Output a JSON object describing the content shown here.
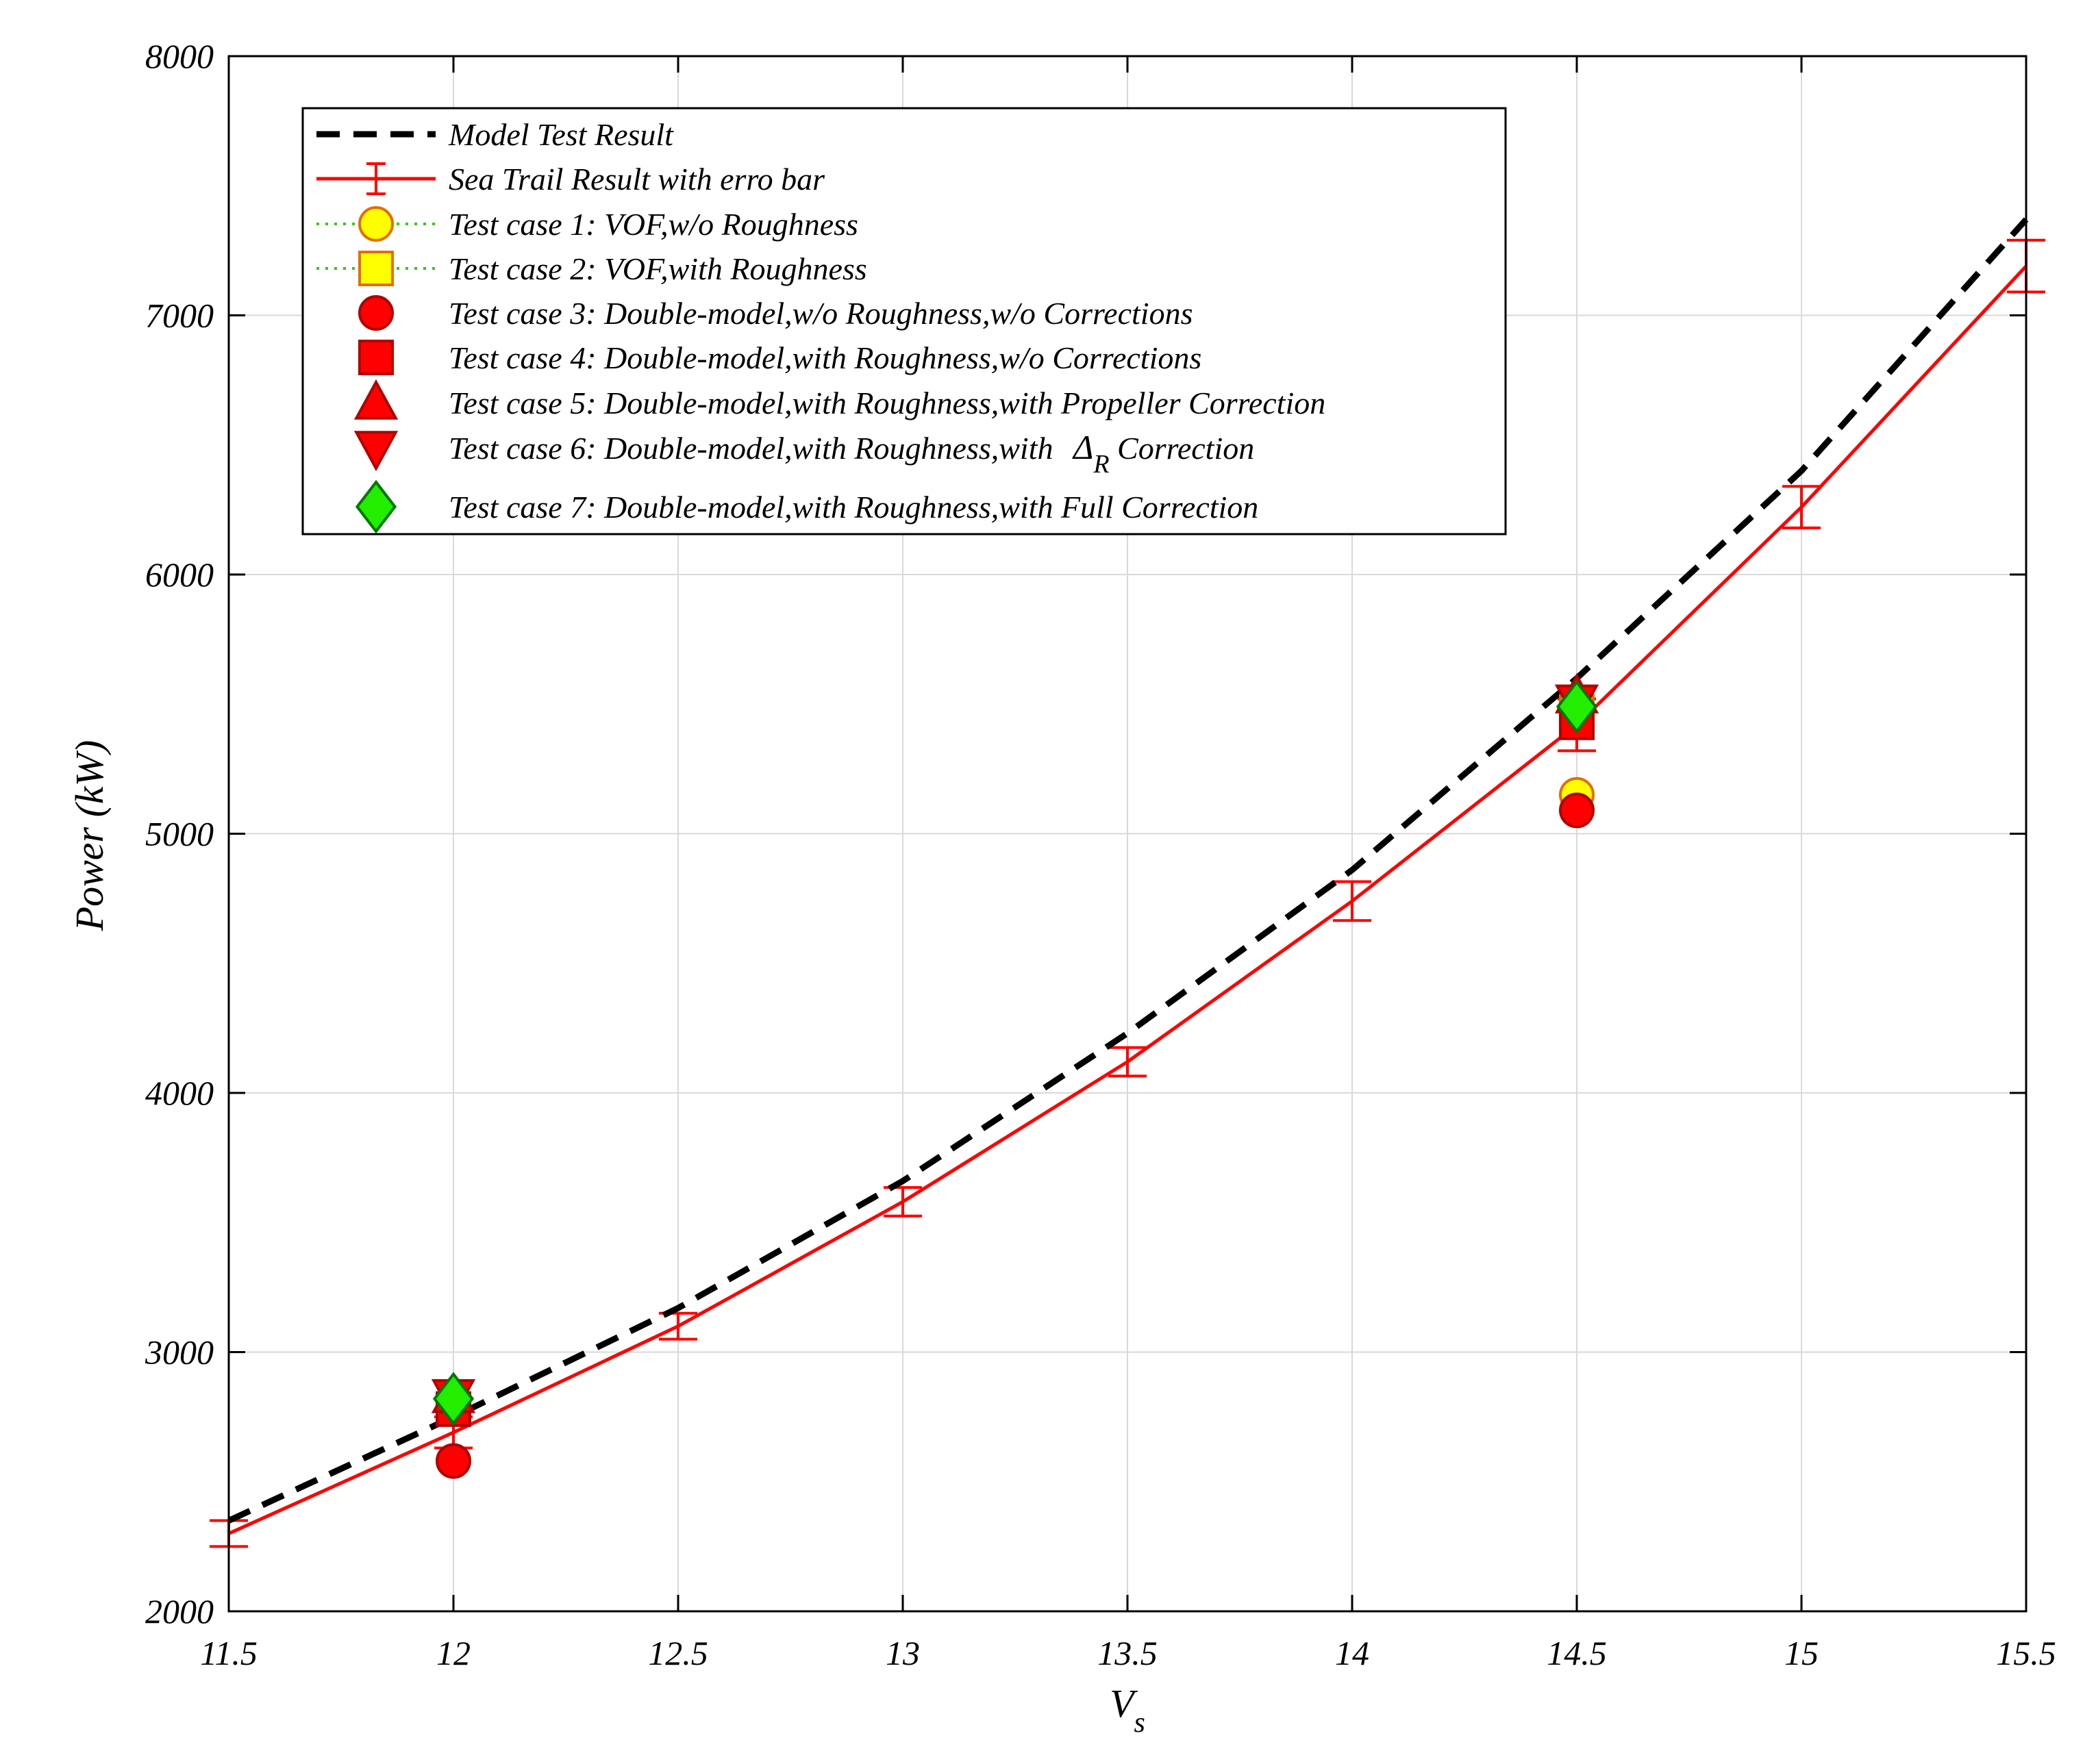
{
  "chart_data": {
    "type": "line",
    "title": "",
    "xlabel": "V",
    "xlabel_subscript": "s",
    "ylabel": "Power (kW)",
    "xlim": [
      11.5,
      15.5
    ],
    "ylim": [
      2000,
      8000
    ],
    "grid": true,
    "x_ticks": [
      11.5,
      12,
      12.5,
      13,
      13.5,
      14,
      14.5,
      15,
      15.5
    ],
    "x_tick_labels": [
      "11.5",
      "12",
      "12.5",
      "13",
      "13.5",
      "14",
      "14.5",
      "15",
      "15.5"
    ],
    "y_ticks": [
      2000,
      3000,
      4000,
      5000,
      6000,
      7000,
      8000
    ],
    "y_tick_labels": [
      "2000",
      "3000",
      "4000",
      "5000",
      "6000",
      "7000",
      "8000"
    ],
    "legend_position": "top-left",
    "colors": {
      "model": "#000000",
      "sea": "#ff0000",
      "vof_line": "#33cc00",
      "yellow": "#ffff00",
      "orange_edge": "#e07000",
      "red": "#ff0000",
      "dark_red_edge": "#b00000",
      "green": "#22ee00",
      "green_edge": "#007700",
      "grid": "#d9d9d9"
    },
    "series": [
      {
        "name": "Model Test Result",
        "style": "dashed",
        "color": "#000000",
        "x": [
          11.5,
          12,
          12.5,
          13,
          13.5,
          14,
          14.5,
          15,
          15.5
        ],
        "y": [
          2350,
          2750,
          3170,
          3660,
          4230,
          4860,
          5600,
          6400,
          7370
        ]
      },
      {
        "name": "Sea Trail Result with erro bar",
        "style": "solid",
        "color": "#ff0000",
        "x": [
          11.5,
          12,
          12.5,
          13,
          13.5,
          14,
          14.5,
          15,
          15.5
        ],
        "y": [
          2300,
          2690,
          3100,
          3580,
          4120,
          4740,
          5420,
          6260,
          7190
        ],
        "error": [
          50,
          60,
          50,
          55,
          55,
          75,
          100,
          80,
          100
        ]
      },
      {
        "name": "Test case 1: VOF,w/o Roughness",
        "marker": "circle",
        "fill": "#ffff00",
        "edge": "#e07000",
        "x": [
          14.5
        ],
        "y": [
          5150
        ]
      },
      {
        "name": "Test case 2: VOF,with Roughness",
        "marker": "square",
        "fill": "#ffff00",
        "edge": "#e07000",
        "x": [
          14.5
        ],
        "y": [
          5470
        ]
      },
      {
        "name": "Test case 3: Double-model,w/o Roughness,w/o Corrections",
        "marker": "circle",
        "fill": "#ff0000",
        "edge": "#b00000",
        "x": [
          12,
          14.5
        ],
        "y": [
          2580,
          5090
        ]
      },
      {
        "name": "Test case 4: Double-model,with Roughness,w/o Corrections",
        "marker": "square",
        "fill": "#ff0000",
        "edge": "#b00000",
        "x": [
          12,
          14.5
        ],
        "y": [
          2780,
          5430
        ]
      },
      {
        "name": "Test case 5: Double-model,with Roughness,with Propeller Correction",
        "marker": "triangle-up",
        "fill": "#ff0000",
        "edge": "#b00000",
        "x": [
          12,
          14.5
        ],
        "y": [
          2830,
          5530
        ]
      },
      {
        "name": "Test case 6: Double-model,with Roughness,with ",
        "name_symbol": "Δ",
        "name_subscript": "R",
        "name_suffix": " Correction",
        "marker": "triangle-down",
        "fill": "#ff0000",
        "edge": "#b00000",
        "x": [
          12,
          14.5
        ],
        "y": [
          2830,
          5510
        ]
      },
      {
        "name": "Test case 7: Double-model,with Roughness,with Full Correction",
        "marker": "diamond",
        "fill": "#22ee00",
        "edge": "#007700",
        "x": [
          12,
          14.5
        ],
        "y": [
          2820,
          5490
        ]
      }
    ]
  }
}
